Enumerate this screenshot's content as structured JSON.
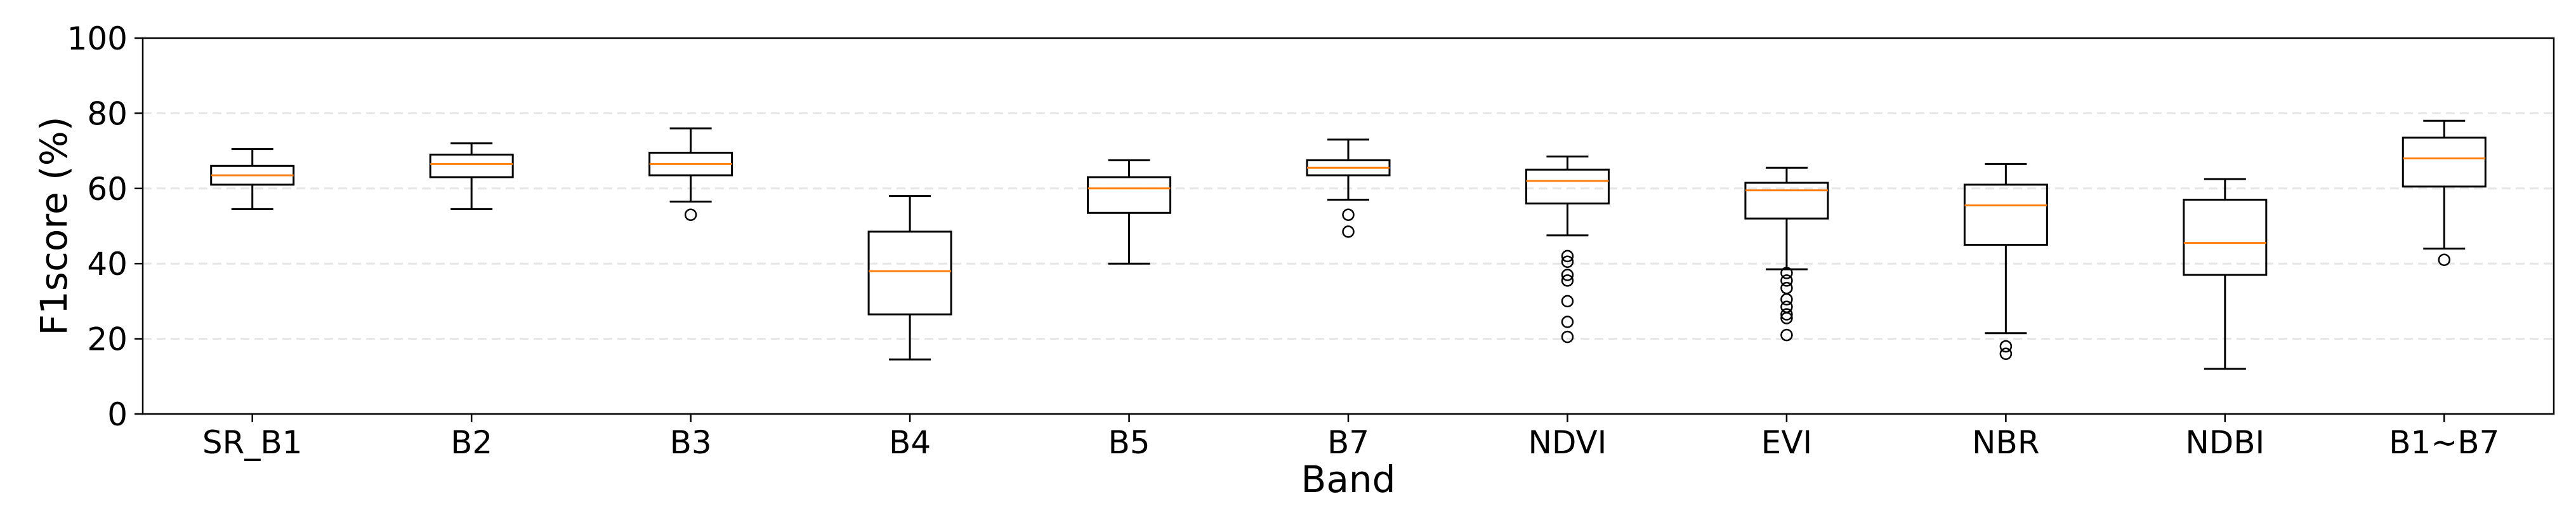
{
  "chart_data": {
    "type": "box",
    "xlabel": "Band",
    "ylabel": "F1score (%)",
    "ylim": [
      0,
      100
    ],
    "yticks": [
      0,
      20,
      40,
      60,
      80,
      100
    ],
    "grid": "horizontal dashed",
    "colors": {
      "box": "#000000",
      "median": "#ff7f0e",
      "grid": "#e6e6e6"
    },
    "categories": [
      "SR_B1",
      "B2",
      "B3",
      "B4",
      "B5",
      "B7",
      "NDVI",
      "EVI",
      "NBR",
      "NDBI",
      "B1~B7"
    ],
    "boxes": [
      {
        "category": "SR_B1",
        "whisker_low": 54.5,
        "q1": 61,
        "median": 63.5,
        "q3": 66,
        "whisker_high": 70.5,
        "outliers": []
      },
      {
        "category": "B2",
        "whisker_low": 54.5,
        "q1": 63,
        "median": 66.5,
        "q3": 69,
        "whisker_high": 72,
        "outliers": []
      },
      {
        "category": "B3",
        "whisker_low": 56.5,
        "q1": 63.5,
        "median": 66.5,
        "q3": 69.5,
        "whisker_high": 76,
        "outliers": [
          53
        ]
      },
      {
        "category": "B4",
        "whisker_low": 14.5,
        "q1": 26.5,
        "median": 38,
        "q3": 48.5,
        "whisker_high": 58,
        "outliers": []
      },
      {
        "category": "B5",
        "whisker_low": 40,
        "q1": 53.5,
        "median": 60,
        "q3": 63,
        "whisker_high": 67.5,
        "outliers": []
      },
      {
        "category": "B7",
        "whisker_low": 57,
        "q1": 63.5,
        "median": 65.5,
        "q3": 67.5,
        "whisker_high": 73,
        "outliers": [
          53,
          48.5
        ]
      },
      {
        "category": "NDVI",
        "whisker_low": 47.5,
        "q1": 56,
        "median": 62,
        "q3": 65,
        "whisker_high": 68.5,
        "outliers": [
          42,
          40.5,
          37,
          35.5,
          30,
          24.5,
          20.5
        ]
      },
      {
        "category": "EVI",
        "whisker_low": 38.5,
        "q1": 52,
        "median": 59.5,
        "q3": 61.5,
        "whisker_high": 65.5,
        "outliers": [
          37.5,
          35.5,
          33.5,
          30.5,
          28.5,
          26.5,
          25.5,
          21
        ]
      },
      {
        "category": "NBR",
        "whisker_low": 21.5,
        "q1": 45,
        "median": 55.5,
        "q3": 61,
        "whisker_high": 66.5,
        "outliers": [
          18,
          16
        ]
      },
      {
        "category": "NDBI",
        "whisker_low": 12,
        "q1": 37,
        "median": 45.5,
        "q3": 57,
        "whisker_high": 62.5,
        "outliers": []
      },
      {
        "category": "B1~B7",
        "whisker_low": 44,
        "q1": 60.5,
        "median": 68,
        "q3": 73.5,
        "whisker_high": 78,
        "outliers": [
          41
        ]
      }
    ]
  }
}
